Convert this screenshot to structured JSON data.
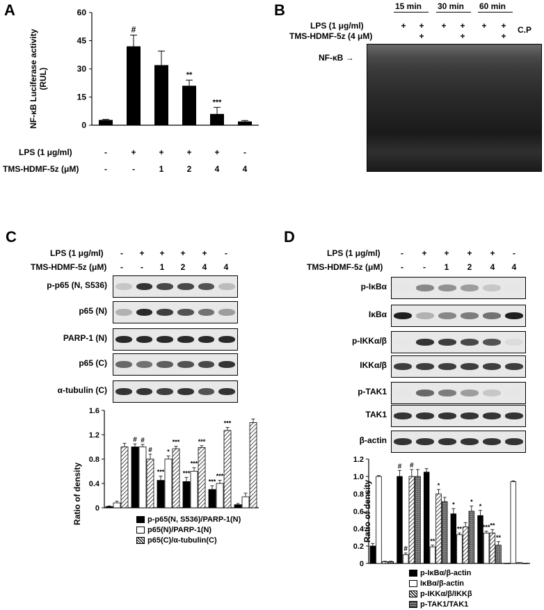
{
  "panels": {
    "A": {
      "label": "A",
      "ylabel_line1": "NF-κB Luciferase activity",
      "ylabel_line2": "(RUL)",
      "row_labels": [
        "LPS (1 μg/ml)",
        "TMS-HDMF-5z (μM)"
      ],
      "lps": [
        "-",
        "+",
        "+",
        "+",
        "+",
        "-"
      ],
      "tms": [
        "-",
        "-",
        "1",
        "2",
        "4",
        "4"
      ],
      "sig": [
        "",
        "#",
        "",
        "**",
        "***",
        ""
      ]
    },
    "B": {
      "label": "B",
      "row_labels": [
        "LPS (1 μg/ml)",
        "TMS-HDMF-5z (4 μM)"
      ],
      "time_labels": [
        "15 min",
        "30 min",
        "60 min"
      ],
      "cp_label": "C.P",
      "nfkb_label": "NF-κB →",
      "lps": [
        "-",
        "+",
        "+",
        "+",
        "+",
        "+",
        "+"
      ],
      "tms": [
        "-",
        "-",
        "+",
        "-",
        "+",
        "-",
        "+"
      ]
    },
    "C": {
      "label": "C",
      "row_labels": [
        "LPS (1 μg/ml)",
        "TMS-HDMF-5z (μM)"
      ],
      "lps": [
        "-",
        "+",
        "+",
        "+",
        "+",
        "-"
      ],
      "tms": [
        "-",
        "-",
        "1",
        "2",
        "4",
        "4"
      ],
      "blots": [
        "p-p65 (N, S536)",
        "p65 (N)",
        "PARP-1 (N)",
        "p65 (C)",
        "α-tubulin (C)"
      ],
      "ylabel": "Ratio of density",
      "legend": [
        "p-p65(N, S536)/PARP-1(N)",
        "p65(N)/PARP-1(N)",
        "p65(C)/α-tubulin(C)"
      ]
    },
    "D": {
      "label": "D",
      "row_labels": [
        "LPS (1 μg/ml)",
        "TMS-HDMF-5z (μM)"
      ],
      "lps": [
        "-",
        "+",
        "+",
        "+",
        "+",
        "-"
      ],
      "tms": [
        "-",
        "-",
        "1",
        "2",
        "4",
        "4"
      ],
      "blots": [
        "p-IκBα",
        "IκBα",
        "p-IKKα/β",
        "IKKα/β",
        "p-TAK1",
        "TAK1",
        "β-actin"
      ],
      "ylabel": "Ratio of density",
      "legend": [
        "p-IκBα/β-actin",
        "IκBα/β-actin",
        "p-IKKα/β/IKKβ",
        "p-TAK1/TAK1"
      ]
    }
  },
  "chart_data": [
    {
      "panel": "A",
      "type": "bar",
      "categories": [
        "1",
        "2",
        "3",
        "4",
        "5",
        "6"
      ],
      "series": [
        {
          "values": [
            2.8,
            42,
            32,
            21,
            6,
            2
          ]
        }
      ],
      "errors": [
        0.3,
        6,
        7.5,
        3,
        3.5,
        0.5
      ],
      "ylim": [
        0,
        60
      ],
      "yticks": [
        0,
        15,
        30,
        45,
        60
      ],
      "color": "#000000"
    },
    {
      "panel": "C",
      "type": "bar",
      "categories": [
        "1",
        "2",
        "3",
        "4",
        "5",
        "6"
      ],
      "yticks": [
        0,
        0.4,
        0.8,
        1.2,
        1.6
      ],
      "ylim": [
        0,
        1.6
      ],
      "series": [
        {
          "name": "p-p65(N, S536)/PARP-1(N)",
          "values": [
            0.02,
            1.0,
            0.45,
            0.43,
            0.3,
            0.05
          ],
          "errors": [
            0.01,
            0.05,
            0.07,
            0.07,
            0.06,
            0.02
          ],
          "fill": "solid",
          "sig": [
            "",
            "#",
            "***",
            "***",
            "***",
            ""
          ]
        },
        {
          "name": "p65(N)/PARP-1(N)",
          "values": [
            0.08,
            1.0,
            0.8,
            0.6,
            0.4,
            0.18
          ],
          "errors": [
            0.03,
            0.04,
            0.05,
            0.06,
            0.05,
            0.06
          ],
          "fill": "white",
          "sig": [
            "",
            "#",
            "*",
            "***",
            "***",
            ""
          ]
        },
        {
          "name": "p65(C)/α-tubulin(C)",
          "values": [
            1.0,
            0.8,
            0.97,
            0.99,
            1.27,
            1.4
          ],
          "errors": [
            0.06,
            0.08,
            0.04,
            0.03,
            0.05,
            0.06
          ],
          "fill": "hatch",
          "sig": [
            "",
            "#",
            "***",
            "***",
            "***",
            ""
          ]
        }
      ]
    },
    {
      "panel": "D",
      "type": "bar",
      "categories": [
        "1",
        "2",
        "3",
        "4",
        "5",
        "6"
      ],
      "yticks": [
        0,
        0.2,
        0.4,
        0.6,
        0.8,
        1,
        1.2
      ],
      "ylim": [
        0,
        1.2
      ],
      "series": [
        {
          "name": "p-IκBα/β-actin",
          "values": [
            0.2,
            1.0,
            1.05,
            0.57,
            0.55,
            0.0
          ],
          "errors": [
            0.03,
            0.07,
            0.04,
            0.06,
            0.06,
            0.0
          ],
          "fill": "solid",
          "sig": [
            "",
            "#",
            "",
            "*",
            "*",
            ""
          ]
        },
        {
          "name": "IκBα/β-actin",
          "values": [
            1.0,
            0.1,
            0.19,
            0.33,
            0.35,
            0.94
          ],
          "errors": [
            0.01,
            0.02,
            0.02,
            0.02,
            0.02,
            0.01
          ],
          "fill": "white",
          "sig": [
            "",
            "#",
            "**",
            "**",
            "***",
            ""
          ]
        },
        {
          "name": "p-IKKα/β/IKKβ",
          "values": [
            0.02,
            1.0,
            0.8,
            0.42,
            0.35,
            0.01
          ],
          "errors": [
            0.005,
            0.08,
            0.05,
            0.05,
            0.04,
            0.0
          ],
          "fill": "hatch",
          "sig": [
            "",
            "#",
            "*",
            "",
            "**",
            ""
          ]
        },
        {
          "name": "p-TAK1/TAK1",
          "values": [
            0.02,
            1.0,
            0.71,
            0.6,
            0.21,
            0.0
          ],
          "errors": [
            0.005,
            0.08,
            0.05,
            0.06,
            0.04,
            0.0
          ],
          "fill": "grid",
          "sig": [
            "",
            "",
            "",
            "*",
            "**",
            ""
          ]
        }
      ]
    }
  ]
}
